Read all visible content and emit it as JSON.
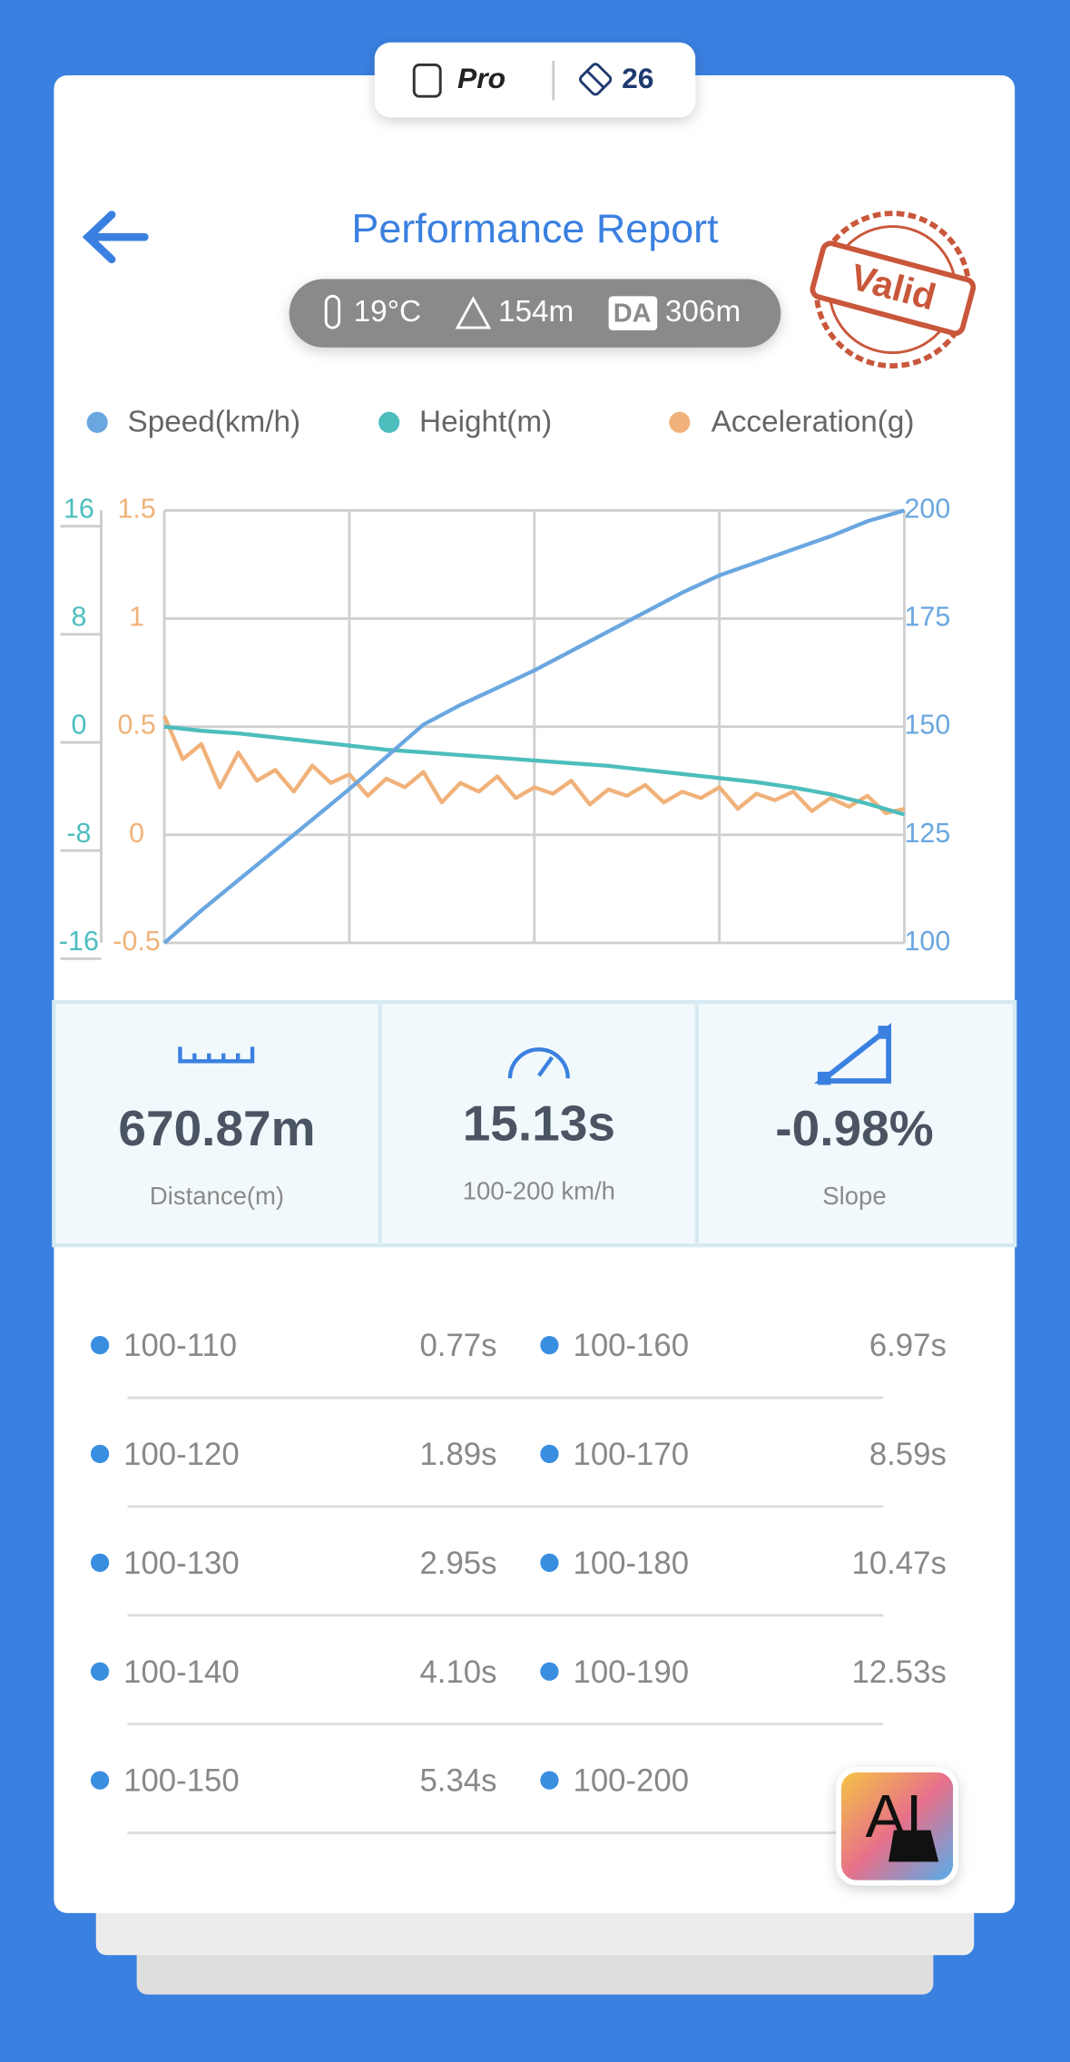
{
  "status_bar": {
    "badge": "Pro",
    "count": "26"
  },
  "header": {
    "title": "Performance Report",
    "temperature": "19°C",
    "altitude": "154m",
    "da_label": "DA",
    "density_altitude": "306m",
    "stamp": "Valid"
  },
  "chart_data": {
    "type": "line",
    "grid": true,
    "series": [
      {
        "name": "Speed(km/h)",
        "color": "#6aa7e0",
        "side": "right",
        "ylim": [
          100,
          200
        ],
        "yticks": [
          100,
          125,
          150,
          175,
          200
        ],
        "values": [
          100,
          107.5,
          114.5,
          121.5,
          128.5,
          135.6,
          143,
          150.5,
          155,
          159,
          163,
          167.5,
          172,
          176.5,
          181,
          185,
          188,
          191,
          194,
          197.5,
          200
        ]
      },
      {
        "name": "Height(m)",
        "color": "#4dbdbd",
        "side": "left-outer",
        "ylim": [
          -16,
          16
        ],
        "yticks": [
          -16,
          -8,
          0,
          8,
          16
        ],
        "values": [
          0,
          -0.3,
          -0.5,
          -0.8,
          -1.1,
          -1.4,
          -1.7,
          -1.9,
          -2.1,
          -2.3,
          -2.5,
          -2.7,
          -2.9,
          -3.2,
          -3.5,
          -3.8,
          -4.1,
          -4.5,
          -5.0,
          -5.7,
          -6.5
        ]
      },
      {
        "name": "Acceleration(g)",
        "color": "#f0b27a",
        "side": "left-inner",
        "ylim": [
          -0.5,
          1.5
        ],
        "yticks": [
          -0.5,
          0,
          0.5,
          1,
          1.5
        ],
        "values": [
          0.55,
          0.35,
          0.42,
          0.22,
          0.38,
          0.25,
          0.3,
          0.2,
          0.32,
          0.24,
          0.28,
          0.18,
          0.26,
          0.22,
          0.29,
          0.15,
          0.24,
          0.2,
          0.27,
          0.17,
          0.22,
          0.19,
          0.25,
          0.14,
          0.21,
          0.18,
          0.23,
          0.15,
          0.2,
          0.17,
          0.22,
          0.12,
          0.19,
          0.16,
          0.2,
          0.11,
          0.17,
          0.13,
          0.18,
          0.1,
          0.12
        ]
      }
    ]
  },
  "stats": [
    {
      "value": "670.87m",
      "label": "Distance(m)"
    },
    {
      "value": "15.13s",
      "label": "100-200 km/h"
    },
    {
      "value": "-0.98%",
      "label": "Slope"
    }
  ],
  "splits": [
    {
      "range": "100-110",
      "time": "0.77s"
    },
    {
      "range": "100-160",
      "time": "6.97s"
    },
    {
      "range": "100-120",
      "time": "1.89s"
    },
    {
      "range": "100-170",
      "time": "8.59s"
    },
    {
      "range": "100-130",
      "time": "2.95s"
    },
    {
      "range": "100-180",
      "time": "10.47s"
    },
    {
      "range": "100-140",
      "time": "4.10s"
    },
    {
      "range": "100-190",
      "time": "12.53s"
    },
    {
      "range": "100-150",
      "time": "5.34s"
    },
    {
      "range": "100-200"
    }
  ],
  "ai_button": "AI"
}
